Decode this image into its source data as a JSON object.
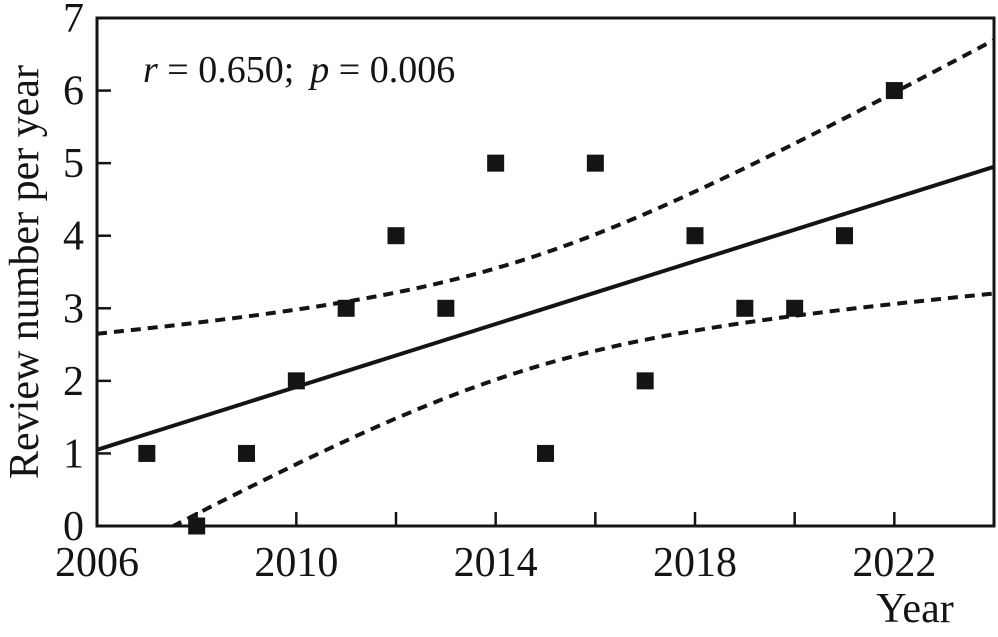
{
  "chart_data": {
    "type": "scatter",
    "title": "",
    "xlabel": "Year",
    "ylabel": "Review number per year",
    "annotation": {
      "r_var": "r",
      "r_rest": " = 0.650;",
      "p_var": "p",
      "p_rest": " = 0.006",
      "full_text": "r = 0.650; p = 0.006"
    },
    "xlim": [
      2006,
      2024
    ],
    "ylim": [
      0,
      7
    ],
    "x_tick_labels": [
      "2006",
      "2010",
      "2014",
      "2018",
      "2022"
    ],
    "x_tick_label_values": [
      2006,
      2010,
      2014,
      2018,
      2022
    ],
    "x_tick_marks": [
      2008,
      2010,
      2012,
      2014,
      2016,
      2018,
      2020,
      2022
    ],
    "y_tick_labels": [
      "0",
      "1",
      "2",
      "3",
      "4",
      "5",
      "6",
      "7"
    ],
    "y_tick_label_values": [
      0,
      1,
      2,
      3,
      4,
      5,
      6,
      7
    ],
    "y_tick_marks": [
      1,
      2,
      3,
      4,
      5,
      6
    ],
    "grid": false,
    "legend": "none",
    "marker": "filled-square",
    "points": [
      {
        "x": 2007,
        "y": 1
      },
      {
        "x": 2008,
        "y": 0
      },
      {
        "x": 2009,
        "y": 1
      },
      {
        "x": 2010,
        "y": 2
      },
      {
        "x": 2011,
        "y": 3
      },
      {
        "x": 2012,
        "y": 4
      },
      {
        "x": 2013,
        "y": 3
      },
      {
        "x": 2014,
        "y": 5
      },
      {
        "x": 2015,
        "y": 1
      },
      {
        "x": 2016,
        "y": 5
      },
      {
        "x": 2017,
        "y": 2
      },
      {
        "x": 2018,
        "y": 4
      },
      {
        "x": 2019,
        "y": 3
      },
      {
        "x": 2020,
        "y": 3
      },
      {
        "x": 2021,
        "y": 4
      },
      {
        "x": 2022,
        "y": 6
      }
    ],
    "regression_line": {
      "x1": 2006,
      "y1": 1.05,
      "x2": 2024,
      "y2": 4.95
    },
    "confidence_band": {
      "center_x": 2014.5,
      "scale": 3.05,
      "k": 0.0625,
      "sxx": 340
    },
    "colors": {
      "ink": "#141414",
      "background": "#ffffff"
    }
  }
}
